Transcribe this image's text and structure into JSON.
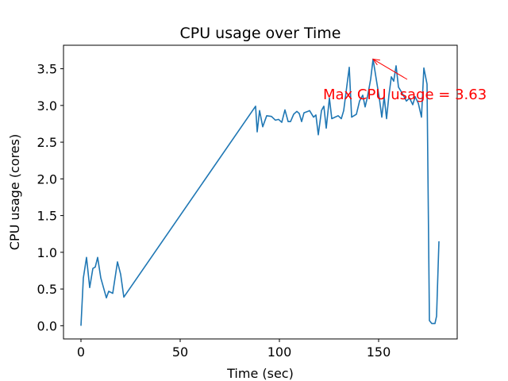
{
  "chart_data": {
    "type": "line",
    "title": "CPU usage over Time",
    "xlabel": "Time (sec)",
    "ylabel": "CPU usage (cores)",
    "xlim": [
      -8.8,
      189.6
    ],
    "ylim": [
      -0.18,
      3.82
    ],
    "xticks": [
      0,
      50,
      100,
      150
    ],
    "xtick_labels": [
      "0",
      "50",
      "100",
      "150"
    ],
    "yticks": [
      0,
      0.5,
      1,
      1.5,
      2,
      2.5,
      3,
      3.5
    ],
    "ytick_labels": [
      "0.0",
      "0.5",
      "1.0",
      "1.5",
      "2.0",
      "2.5",
      "3.0",
      "3.5"
    ],
    "grid": false,
    "series": [
      {
        "name": "CPU usage",
        "color": "#1f77b4",
        "x": [
          0,
          1.2,
          2.8,
          4.4,
          6,
          7.2,
          8.4,
          10,
          12.8,
          14,
          16,
          18.4,
          20,
          21.6,
          88,
          88.8,
          90,
          91.6,
          93.6,
          96,
          98,
          99.6,
          101.2,
          102.8,
          104.4,
          105.6,
          107.2,
          108.8,
          110,
          111.2,
          112.4,
          114.4,
          115.2,
          117.2,
          118.4,
          119.6,
          121.2,
          122.4,
          123.6,
          125.2,
          126.4,
          128,
          129.6,
          131.2,
          132.4,
          135.2,
          136.4,
          138.8,
          140.4,
          142,
          143.2,
          144.4,
          146,
          147.2,
          148.8,
          150.4,
          151.6,
          152.8,
          154,
          155.2,
          156.4,
          157.6,
          158.8,
          160,
          162,
          164,
          165.6,
          167.2,
          168.4,
          170,
          171.6,
          172.8,
          174.4,
          175.6,
          176.8,
          178.4,
          179.2,
          180.4
        ],
        "y": [
          0,
          0.65,
          0.93,
          0.52,
          0.78,
          0.8,
          0.93,
          0.65,
          0.38,
          0.47,
          0.44,
          0.87,
          0.7,
          0.39,
          2.99,
          2.64,
          2.93,
          2.71,
          2.86,
          2.85,
          2.8,
          2.81,
          2.77,
          2.94,
          2.78,
          2.78,
          2.88,
          2.92,
          2.89,
          2.78,
          2.9,
          2.92,
          2.93,
          2.84,
          2.87,
          2.6,
          2.93,
          2.99,
          2.69,
          3.1,
          2.82,
          2.84,
          2.86,
          2.82,
          2.93,
          3.52,
          2.84,
          2.88,
          3.06,
          3.14,
          2.98,
          3.12,
          3.36,
          3.63,
          3.36,
          3.09,
          2.84,
          3.12,
          2.82,
          3.14,
          3.39,
          3.33,
          3.54,
          3.25,
          3.16,
          3.06,
          3.1,
          3.01,
          3.12,
          3.03,
          2.84,
          3.51,
          3.29,
          0.07,
          0.03,
          0.03,
          0.13,
          1.15
        ]
      }
    ],
    "annotations": [
      {
        "text": "Max CPU usage = 3.63",
        "xy": [
          147.2,
          3.63
        ],
        "xytext": [
          122,
          3.15
        ],
        "color": "#ff0000"
      }
    ]
  }
}
